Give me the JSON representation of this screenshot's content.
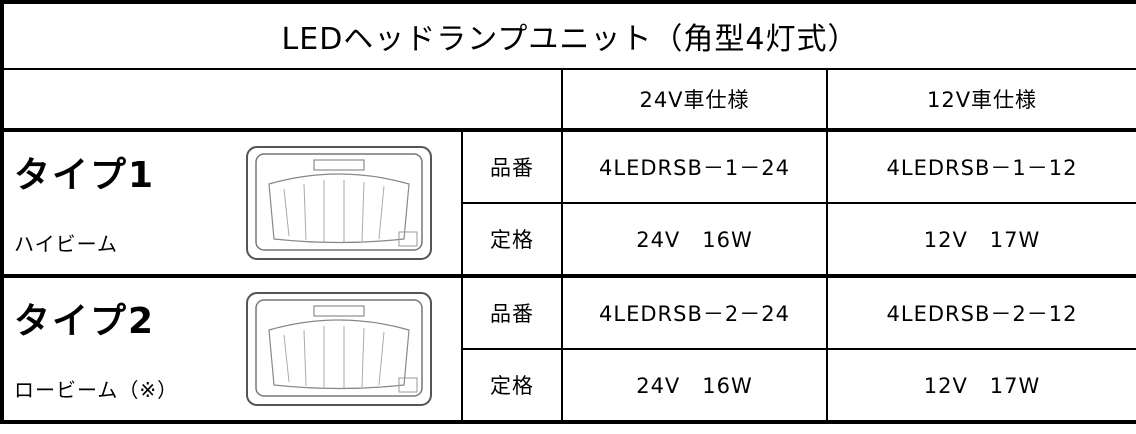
{
  "title": "LEDヘッドランプユニット（角型4灯式）",
  "headers": [
    "24V車仕様",
    "12V車仕様"
  ],
  "types": [
    {
      "name": "タイプ1",
      "subtitle": "ハイビーム",
      "rows": [
        {
          "label": "品番",
          "values": [
            "4LEDRSB－1－24",
            "4LEDRSB－1－12"
          ]
        },
        {
          "label": "定格",
          "values": [
            "24V　16W",
            "12V　17W"
          ]
        }
      ]
    },
    {
      "name": "タイプ2",
      "subtitle": "ロービーム（※）",
      "rows": [
        {
          "label": "品番",
          "values": [
            "4LEDRSB－2－24",
            "4LEDRSB－2－12"
          ]
        },
        {
          "label": "定格",
          "values": [
            "24V　16W",
            "12V　17W"
          ]
        }
      ]
    }
  ]
}
